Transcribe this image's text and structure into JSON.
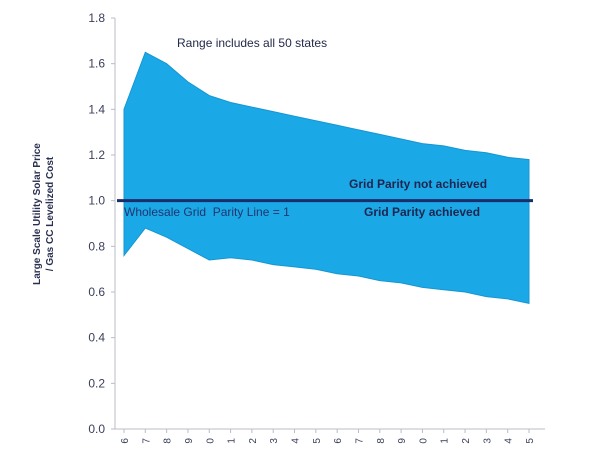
{
  "chart_data": {
    "type": "area",
    "title": "",
    "xlabel": "",
    "ylabel": "Large Scale Utility Solar Price / Gas CC Levelized Cost",
    "ylabel_lines": [
      "Large Scale Utility Solar Price",
      "/ Gas CC Levelized Cost"
    ],
    "ylim": [
      0,
      1.8
    ],
    "yticks": [
      "0.0",
      "0.2",
      "0.4",
      "0.6",
      "0.8",
      "1.0",
      "1.2",
      "1.4",
      "1.6",
      "1.8"
    ],
    "x": [
      "6",
      "7",
      "8",
      "9",
      "0",
      "1",
      "2",
      "3",
      "4",
      "5",
      "6",
      "7",
      "8",
      "9",
      "0",
      "1",
      "2",
      "3",
      "4",
      "5"
    ],
    "grid": false,
    "series": [
      {
        "name": "",
        "upper": [
          1.4,
          1.65,
          1.6,
          1.52,
          1.46,
          1.43,
          1.41,
          1.39,
          1.37,
          1.35,
          1.33,
          1.31,
          1.29,
          1.27,
          1.25,
          1.24,
          1.22,
          1.21,
          1.19,
          1.18
        ],
        "lower": [
          0.76,
          0.88,
          0.84,
          0.79,
          0.74,
          0.75,
          0.74,
          0.72,
          0.71,
          0.7,
          0.68,
          0.67,
          0.65,
          0.64,
          0.62,
          0.61,
          0.6,
          0.58,
          0.57,
          0.55
        ],
        "color": "#1aa9e6"
      }
    ],
    "reference_line": {
      "y": 1.0,
      "color": "#1b2d6b"
    },
    "annotations": {
      "range_note": "Range includes all 50 states",
      "not_achieved": "Grid Parity not achieved",
      "achieved": "Grid Parity achieved",
      "parity_line": "Wholesale Grid  Parity Line = 1"
    }
  }
}
